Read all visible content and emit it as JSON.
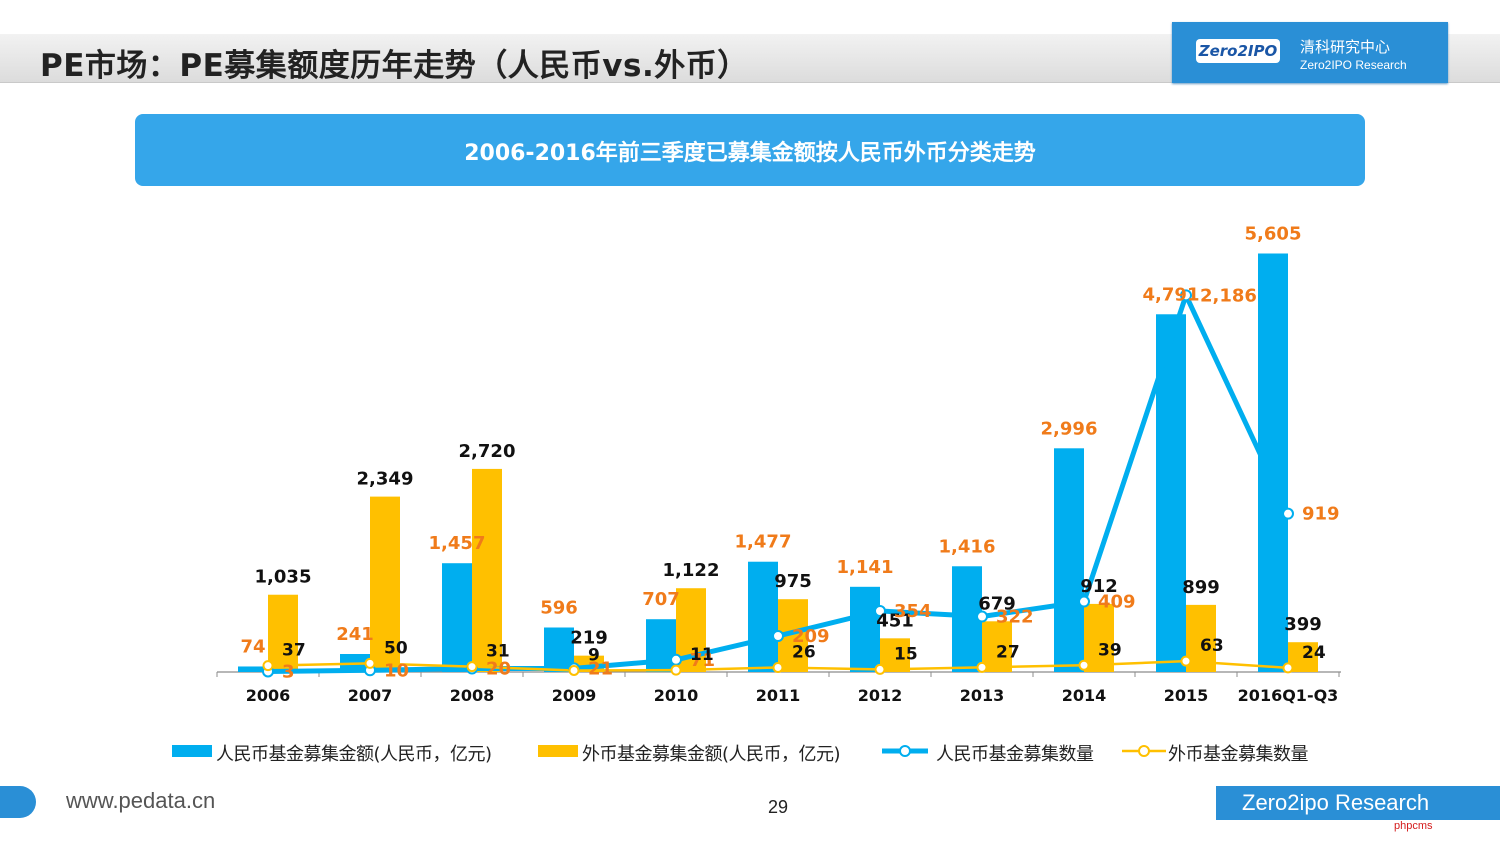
{
  "slide": {
    "title": "PE市场：PE募集额度历年走势（人民币vs.外币）",
    "brand_logo": "Zero2IPO",
    "brand_cn": "清科研究中心",
    "brand_en": "Zero2IPO Research",
    "footer_url": "www.pedata.cn",
    "page_number": "29",
    "footer_brand": "Zero2ipo Research",
    "watermark": "phpcms"
  },
  "colors": {
    "rmb": "#00aeef",
    "fx": "#ffc000",
    "label_black": "#111111",
    "label_orange": "#f07b1a"
  },
  "chart_data": {
    "type": "bar",
    "title": "2006-2016年前三季度已募集金额按人民币外币分类走势",
    "categories": [
      "2006",
      "2007",
      "2008",
      "2009",
      "2010",
      "2011",
      "2012",
      "2013",
      "2014",
      "2015",
      "2016Q1-Q3"
    ],
    "series": [
      {
        "name": "人民币基金募集金额(人民币，亿元)",
        "kind": "bar",
        "values": [
          74,
          241,
          1457,
          596,
          707,
          1477,
          1141,
          1416,
          2996,
          4791,
          5605
        ]
      },
      {
        "name": "外币基金募集金额(人民币，亿元)",
        "kind": "bar",
        "values": [
          1035,
          2349,
          2720,
          219,
          1122,
          975,
          451,
          679,
          912,
          899,
          399
        ]
      },
      {
        "name": "人民币基金募集数量",
        "kind": "line",
        "values": [
          3,
          10,
          20,
          21,
          71,
          209,
          354,
          322,
          409,
          2186,
          919
        ]
      },
      {
        "name": "外币基金募集数量",
        "kind": "line",
        "values": [
          37,
          50,
          31,
          9,
          11,
          26,
          15,
          27,
          39,
          63,
          24
        ]
      }
    ],
    "value_labels": {
      "rmb_amount": [
        "74",
        "241",
        "1,457",
        "596",
        "707",
        "1,477",
        "1,141",
        "1,416",
        "2,996",
        "4,791",
        "5,605"
      ],
      "fx_amount": [
        "1,035",
        "2,349",
        "2,720",
        "219",
        "1,122",
        "975",
        "451",
        "679",
        "912",
        "899",
        "399"
      ],
      "rmb_count": [
        "3",
        "10",
        "20",
        "21",
        "71",
        "209",
        "354",
        "322",
        "409",
        "2,186",
        "919"
      ],
      "fx_count": [
        "37",
        "50",
        "31",
        "9",
        "11",
        "26",
        "15",
        "27",
        "39",
        "63",
        "24"
      ],
      "label_orange_series": [
        "rmb_amount",
        "rmb_count"
      ]
    },
    "ylim": [
      0,
      6000
    ],
    "y2lim": [
      0,
      2600
    ],
    "xlabel": "",
    "ylabel": "",
    "grid": false,
    "legend": "bottom"
  }
}
